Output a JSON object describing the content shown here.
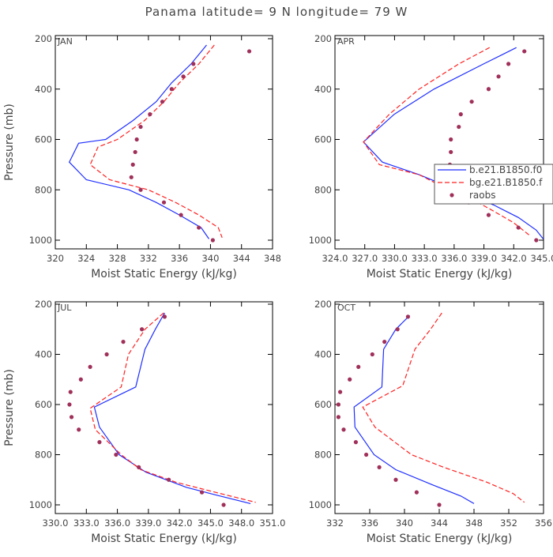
{
  "figure_title": "Panama  latitude= 9 N longitude= 79 W",
  "colors": {
    "model1": "#1f2fff",
    "model2": "#ff2020",
    "obs": "#a0305a",
    "frame": "#000000"
  },
  "legend": [
    "b.e21.B1850.f0",
    "bg.e21.B1850.f",
    "raobs"
  ],
  "chart_data": [
    {
      "type": "line",
      "panel": "JAN",
      "xlabel": "Moist Static Energy (kJ/kg)",
      "ylabel": "Pressure (mb)",
      "xlim": [
        320,
        348
      ],
      "ylim": [
        1000,
        200
      ],
      "xticks": [
        "320",
        "324",
        "328",
        "332",
        "336",
        "340",
        "344",
        "348"
      ],
      "yticks": [
        "200",
        "400",
        "600",
        "800",
        "1000"
      ],
      "series": [
        {
          "name": "b.e21.B1850.f0",
          "style": "solid",
          "color": "#1f2fff",
          "points": [
            [
              339.5,
              225
            ],
            [
              337.5,
              300
            ],
            [
              335,
              375
            ],
            [
              333,
              450
            ],
            [
              330,
              525
            ],
            [
              326.5,
              600
            ],
            [
              323,
              615
            ],
            [
              321.8,
              690
            ],
            [
              324,
              760
            ],
            [
              329.5,
              800
            ],
            [
              333,
              850
            ],
            [
              336,
              900
            ],
            [
              338.8,
              950
            ],
            [
              339.8,
              995
            ]
          ]
        },
        {
          "name": "bg.e21.B1850.f",
          "style": "dashed",
          "color": "#ff2020",
          "points": [
            [
              340.5,
              225
            ],
            [
              338.5,
              300
            ],
            [
              336,
              375
            ],
            [
              334,
              450
            ],
            [
              331.5,
              525
            ],
            [
              328,
              600
            ],
            [
              325.5,
              630
            ],
            [
              324.5,
              700
            ],
            [
              327,
              760
            ],
            [
              332,
              800
            ],
            [
              335.5,
              850
            ],
            [
              338.5,
              900
            ],
            [
              341,
              950
            ],
            [
              341.5,
              990
            ]
          ]
        },
        {
          "name": "raobs",
          "style": "dots",
          "color": "#a0305a",
          "points": [
            [
              345,
              250
            ],
            [
              337.8,
              300
            ],
            [
              336.5,
              350
            ],
            [
              335,
              400
            ],
            [
              333.8,
              450
            ],
            [
              332.2,
              500
            ],
            [
              331,
              550
            ],
            [
              330.5,
              600
            ],
            [
              330.3,
              650
            ],
            [
              330,
              700
            ],
            [
              329.8,
              750
            ],
            [
              331,
              800
            ],
            [
              334,
              850
            ],
            [
              336.2,
              900
            ],
            [
              338.5,
              950
            ],
            [
              340.3,
              1000
            ]
          ]
        }
      ]
    },
    {
      "type": "line",
      "panel": "APR",
      "xlabel": "Moist Static Energy (kJ/kg)",
      "ylabel": "",
      "xlim": [
        324.03,
        345.03
      ],
      "ylim": [
        1000,
        200
      ],
      "xticks": [
        "324.0",
        "327.0",
        "330.0",
        "333.0",
        "336.0",
        "339.0",
        "342.0",
        "345.0"
      ],
      "yticks": [
        "200",
        "400",
        "600",
        "800",
        "1000"
      ],
      "series": [
        {
          "name": "b.e21.B1850.f0",
          "style": "solid",
          "color": "#1f2fff",
          "points": [
            [
              342.3,
              235
            ],
            [
              339,
              300
            ],
            [
              334,
              400
            ],
            [
              330,
              500
            ],
            [
              326.9,
              610
            ],
            [
              328.8,
              690
            ],
            [
              332.5,
              740
            ],
            [
              335,
              780
            ],
            [
              337.5,
              820
            ],
            [
              340,
              860
            ],
            [
              342.5,
              910
            ],
            [
              344.3,
              960
            ],
            [
              345,
              995
            ]
          ]
        },
        {
          "name": "bg.e21.B1850.f",
          "style": "dashed",
          "color": "#ff2020",
          "points": [
            [
              339.6,
              235
            ],
            [
              336.5,
              300
            ],
            [
              332.5,
              400
            ],
            [
              329.5,
              500
            ],
            [
              326.9,
              610
            ],
            [
              328.5,
              700
            ],
            [
              332.5,
              740
            ],
            [
              335,
              790
            ],
            [
              337.5,
              830
            ],
            [
              339.8,
              880
            ],
            [
              342,
              930
            ],
            [
              343.6,
              980
            ]
          ]
        },
        {
          "name": "raobs",
          "style": "dots",
          "color": "#a0305a",
          "points": [
            [
              343.1,
              250
            ],
            [
              341.5,
              300
            ],
            [
              340.5,
              350
            ],
            [
              339.5,
              400
            ],
            [
              337.8,
              450
            ],
            [
              336.7,
              500
            ],
            [
              336.5,
              550
            ],
            [
              335.7,
              600
            ],
            [
              335.7,
              650
            ],
            [
              335.6,
              700
            ],
            [
              335.6,
              750
            ],
            [
              336.3,
              800
            ],
            [
              337.5,
              850
            ],
            [
              339.5,
              900
            ],
            [
              342.5,
              950
            ],
            [
              344.3,
              1000
            ]
          ]
        }
      ]
    },
    {
      "type": "line",
      "panel": "JUL",
      "xlabel": "Moist Static Energy (kJ/kg)",
      "ylabel": "Pressure (mb)",
      "xlim": [
        330.03,
        351.03
      ],
      "ylim": [
        1000,
        200
      ],
      "xticks": [
        "330.0",
        "333.0",
        "336.0",
        "339.0",
        "342.0",
        "345.0",
        "348.0",
        "351.0"
      ],
      "yticks": [
        "200",
        "400",
        "600",
        "800",
        "1000"
      ],
      "series": [
        {
          "name": "b.e21.B1850.f0",
          "style": "solid",
          "color": "#1f2fff",
          "points": [
            [
              340.6,
              235
            ],
            [
              339.7,
              300
            ],
            [
              338.7,
              380
            ],
            [
              337.8,
              530
            ],
            [
              333.8,
              610
            ],
            [
              334.3,
              690
            ],
            [
              336.2,
              800
            ],
            [
              338.8,
              870
            ],
            [
              342.7,
              930
            ],
            [
              345.5,
              960
            ],
            [
              348.9,
              995
            ]
          ]
        },
        {
          "name": "bg.e21.B1850.f",
          "style": "dashed",
          "color": "#ff2020",
          "points": [
            [
              340.5,
              235
            ],
            [
              338.7,
              300
            ],
            [
              337.1,
              400
            ],
            [
              336.4,
              530
            ],
            [
              333.4,
              615
            ],
            [
              333.9,
              700
            ],
            [
              336.4,
              800
            ],
            [
              338.3,
              860
            ],
            [
              341.7,
              910
            ],
            [
              345.5,
              950
            ],
            [
              349.4,
              990
            ]
          ]
        },
        {
          "name": "raobs",
          "style": "dots",
          "color": "#a0305a",
          "points": [
            [
              340.6,
              250
            ],
            [
              338.4,
              300
            ],
            [
              336.6,
              350
            ],
            [
              335,
              400
            ],
            [
              333.4,
              450
            ],
            [
              332.5,
              500
            ],
            [
              331.5,
              550
            ],
            [
              331.4,
              600
            ],
            [
              331.6,
              650
            ],
            [
              332.3,
              700
            ],
            [
              334.3,
              750
            ],
            [
              335.9,
              800
            ],
            [
              338.1,
              850
            ],
            [
              341,
              900
            ],
            [
              344.2,
              950
            ],
            [
              346.3,
              1000
            ]
          ]
        }
      ]
    },
    {
      "type": "line",
      "panel": "OCT",
      "xlabel": "Moist Static Energy (kJ/kg)",
      "ylabel": "",
      "xlim": [
        332,
        356
      ],
      "ylim": [
        1000,
        200
      ],
      "xticks": [
        "332",
        "336",
        "340",
        "344",
        "348",
        "352",
        "356"
      ],
      "yticks": [
        "200",
        "400",
        "600",
        "800",
        "1000"
      ],
      "series": [
        {
          "name": "b.e21.B1850.f0",
          "style": "solid",
          "color": "#1f2fff",
          "points": [
            [
              340.6,
              245
            ],
            [
              339,
              300
            ],
            [
              337.6,
              380
            ],
            [
              337.4,
              530
            ],
            [
              334.2,
              610
            ],
            [
              334.3,
              690
            ],
            [
              336.5,
              800
            ],
            [
              339,
              860
            ],
            [
              343.2,
              920
            ],
            [
              346.5,
              965
            ],
            [
              348,
              995
            ]
          ]
        },
        {
          "name": "bg.e21.B1850.f",
          "style": "dashed",
          "color": "#ff2020",
          "points": [
            [
              344.3,
              235
            ],
            [
              343,
              300
            ],
            [
              341.2,
              380
            ],
            [
              339.8,
              525
            ],
            [
              335.2,
              610
            ],
            [
              336.6,
              690
            ],
            [
              340.8,
              800
            ],
            [
              344.5,
              850
            ],
            [
              349.5,
              910
            ],
            [
              352.5,
              955
            ],
            [
              353.8,
              990
            ]
          ]
        },
        {
          "name": "raobs",
          "style": "dots",
          "color": "#a0305a",
          "points": [
            [
              340.4,
              250
            ],
            [
              339.2,
              300
            ],
            [
              337.7,
              350
            ],
            [
              336.3,
              400
            ],
            [
              334.7,
              450
            ],
            [
              333.7,
              500
            ],
            [
              332.6,
              550
            ],
            [
              332.4,
              600
            ],
            [
              332.4,
              650
            ],
            [
              333,
              700
            ],
            [
              334.4,
              750
            ],
            [
              335.6,
              800
            ],
            [
              337.1,
              850
            ],
            [
              339,
              900
            ],
            [
              341.4,
              950
            ],
            [
              344,
              1000
            ]
          ]
        }
      ]
    }
  ]
}
